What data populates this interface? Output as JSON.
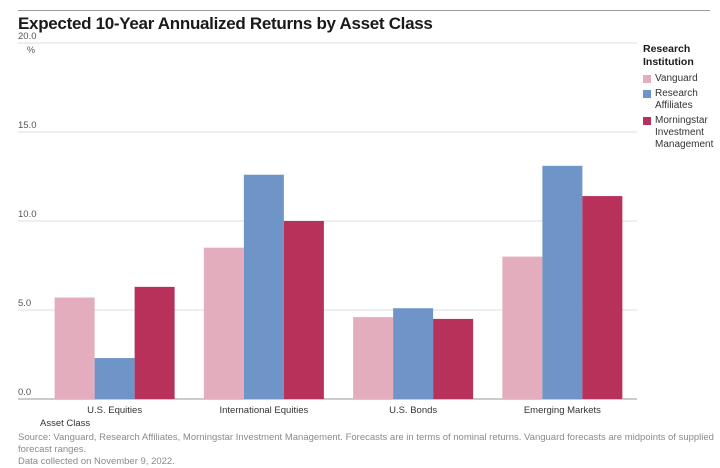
{
  "title": "Expected 10-Year Annualized Returns by Asset Class",
  "source_line1": "Source: Vanguard, Research Affiliates, Morningstar Investment Management. Forecasts are in terms of nominal returns. Vanguard forecasts are midpoints of supplied forecast ranges.",
  "source_line2": "Data collected on November 9, 2022.",
  "legend_title_line1": "Research",
  "legend_title_line2": "Institution",
  "chart_data": {
    "type": "bar",
    "title": "Expected 10-Year Annualized Returns by Asset Class",
    "xlabel": "Asset Class",
    "ylabel": "%",
    "ylim": [
      0,
      20
    ],
    "yticks": [
      "0.0",
      "5.0",
      "10.0",
      "15.0",
      "20.0"
    ],
    "grid": "horizontal",
    "legend_position": "right",
    "categories": [
      "U.S. Equities",
      "International Equities",
      "U.S. Bonds",
      "Emerging Markets"
    ],
    "series": [
      {
        "name": "Vanguard",
        "color": "#e3adbe",
        "values": [
          5.7,
          8.5,
          4.6,
          8.0
        ]
      },
      {
        "name": "Research Affiliates",
        "color": "#6f95c8",
        "values": [
          2.3,
          12.6,
          5.1,
          13.1
        ]
      },
      {
        "name": "Morningstar Investment Management",
        "color": "#b8315b",
        "values": [
          6.3,
          10.0,
          4.5,
          11.4
        ]
      }
    ]
  }
}
